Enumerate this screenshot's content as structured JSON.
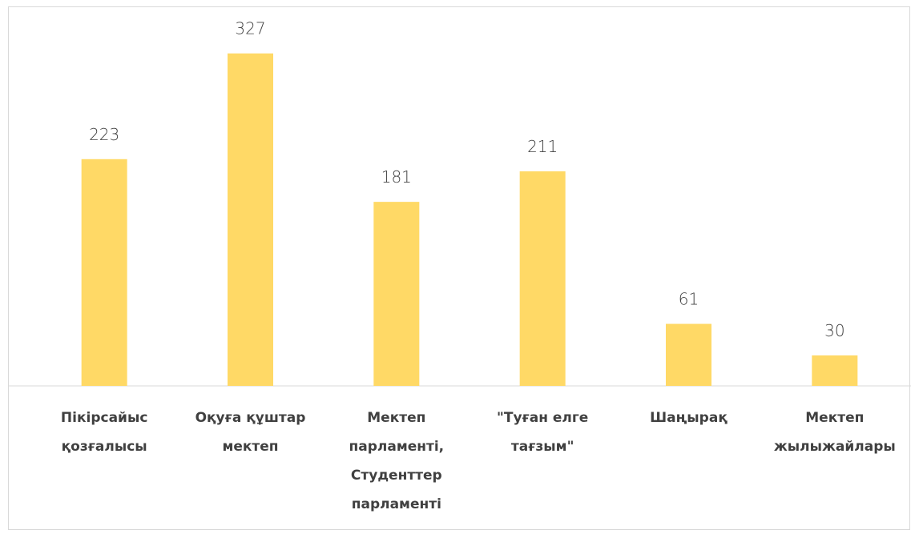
{
  "chart_data": {
    "type": "bar",
    "categories": [
      "Пікірсайыс қозғалысы",
      "Оқуға құштар мектеп",
      "Мектеп парламенті, Студенттер парламенті",
      "\"Туған елге тағзым\"",
      "Шаңырақ",
      "Мектеп жылыжайлары"
    ],
    "values": [
      223,
      327,
      181,
      211,
      61,
      30
    ],
    "color": "#ffd966"
  }
}
